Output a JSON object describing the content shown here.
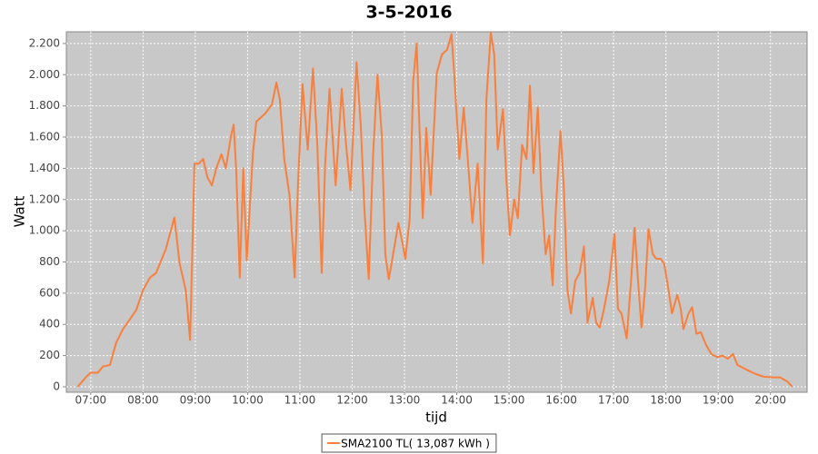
{
  "chart_data": {
    "type": "line",
    "title": "3-5-2016",
    "x_label": "tijd",
    "y_label": "Watt",
    "x": [
      "06:45",
      "06:55",
      "07:00",
      "07:08",
      "07:14",
      "07:22",
      "07:29",
      "07:37",
      "07:52",
      "08:00",
      "08:08",
      "08:15",
      "08:26",
      "08:36",
      "08:42",
      "08:49",
      "08:54",
      "08:59",
      "09:04",
      "09:09",
      "09:14",
      "09:19",
      "09:24",
      "09:30",
      "09:35",
      "09:41",
      "09:44",
      "09:47",
      "09:51",
      "09:55",
      "09:59",
      "10:06",
      "10:10",
      "10:20",
      "10:28",
      "10:33",
      "10:37",
      "10:42",
      "10:48",
      "10:54",
      "10:58",
      "11:03",
      "11:09",
      "11:15",
      "11:20",
      "11:25",
      "11:29",
      "11:34",
      "11:41",
      "11:48",
      "11:53",
      "11:58",
      "12:05",
      "12:10",
      "12:14",
      "12:19",
      "12:24",
      "12:29",
      "12:34",
      "12:38",
      "12:42",
      "12:47",
      "12:53",
      "12:57",
      "13:01",
      "13:06",
      "13:10",
      "13:14",
      "13:17",
      "13:21",
      "13:25",
      "13:30",
      "13:37",
      "13:43",
      "13:49",
      "13:54",
      "13:57",
      "14:03",
      "14:08",
      "14:13",
      "14:18",
      "14:24",
      "14:30",
      "14:34",
      "14:39",
      "14:43",
      "14:47",
      "14:53",
      "14:57",
      "15:01",
      "15:06",
      "15:10",
      "15:15",
      "15:20",
      "15:24",
      "15:28",
      "15:33",
      "15:37",
      "15:42",
      "15:46",
      "15:50",
      "15:54",
      "15:59",
      "16:03",
      "16:07",
      "16:11",
      "16:16",
      "16:21",
      "16:26",
      "16:30",
      "16:36",
      "16:40",
      "16:44",
      "16:49",
      "16:55",
      "17:01",
      "17:05",
      "17:09",
      "17:15",
      "17:20",
      "17:24",
      "17:28",
      "17:32",
      "17:36",
      "17:40",
      "17:45",
      "17:49",
      "17:54",
      "17:58",
      "18:03",
      "18:07",
      "18:13",
      "18:17",
      "18:20",
      "18:26",
      "18:30",
      "18:35",
      "18:40",
      "18:46",
      "18:52",
      "18:59",
      "19:05",
      "19:11",
      "19:17",
      "19:22",
      "19:29",
      "19:36",
      "19:44",
      "19:52",
      "20:02",
      "20:11",
      "20:19",
      "20:25"
    ],
    "series": [
      {
        "name": "SMA2100 TL( 13,087 kWh )",
        "color": "#fa7f3c",
        "values": [
          0,
          65,
          90,
          90,
          130,
          140,
          280,
          370,
          490,
          620,
          700,
          730,
          880,
          1085,
          790,
          620,
          300,
          1430,
          1430,
          1460,
          1340,
          1290,
          1400,
          1490,
          1400,
          1610,
          1680,
          1380,
          700,
          1400,
          810,
          1490,
          1700,
          1750,
          1810,
          1950,
          1840,
          1460,
          1230,
          700,
          1320,
          1940,
          1520,
          2040,
          1550,
          730,
          1430,
          1910,
          1290,
          1910,
          1550,
          1260,
          2080,
          1660,
          1140,
          690,
          1490,
          2000,
          1610,
          850,
          690,
          850,
          1050,
          940,
          820,
          1080,
          1960,
          2200,
          1690,
          1080,
          1660,
          1230,
          2010,
          2130,
          2160,
          2260,
          2010,
          1460,
          1790,
          1430,
          1050,
          1430,
          790,
          1840,
          2270,
          2130,
          1520,
          1780,
          1320,
          970,
          1200,
          1080,
          1550,
          1460,
          1930,
          1370,
          1790,
          1260,
          850,
          970,
          650,
          1170,
          1640,
          1260,
          620,
          470,
          680,
          730,
          900,
          410,
          570,
          410,
          380,
          500,
          680,
          980,
          500,
          470,
          310,
          680,
          1020,
          680,
          380,
          620,
          1010,
          850,
          820,
          820,
          790,
          620,
          470,
          590,
          500,
          370,
          470,
          510,
          340,
          350,
          270,
          210,
          190,
          200,
          180,
          210,
          140,
          120,
          100,
          80,
          65,
          60,
          60,
          35,
          0
        ]
      }
    ],
    "xlim": [
      "06:32",
      "20:42"
    ],
    "xticks": [
      "07:00",
      "08:00",
      "09:00",
      "10:00",
      "11:00",
      "12:00",
      "13:00",
      "14:00",
      "15:00",
      "16:00",
      "17:00",
      "18:00",
      "19:00",
      "20:00"
    ],
    "ylim": [
      -35,
      2275
    ],
    "yticks": [
      0,
      200,
      400,
      600,
      800,
      {
        "value": 1000,
        "label": "1.000"
      },
      {
        "value": 1200,
        "label": "1.200"
      },
      {
        "value": 1400,
        "label": "1.400"
      },
      {
        "value": 1600,
        "label": "1.600"
      },
      {
        "value": 1800,
        "label": "1.800"
      },
      {
        "value": 2000,
        "label": "2.000"
      },
      {
        "value": 2200,
        "label": "2.200"
      }
    ],
    "grid": true
  }
}
